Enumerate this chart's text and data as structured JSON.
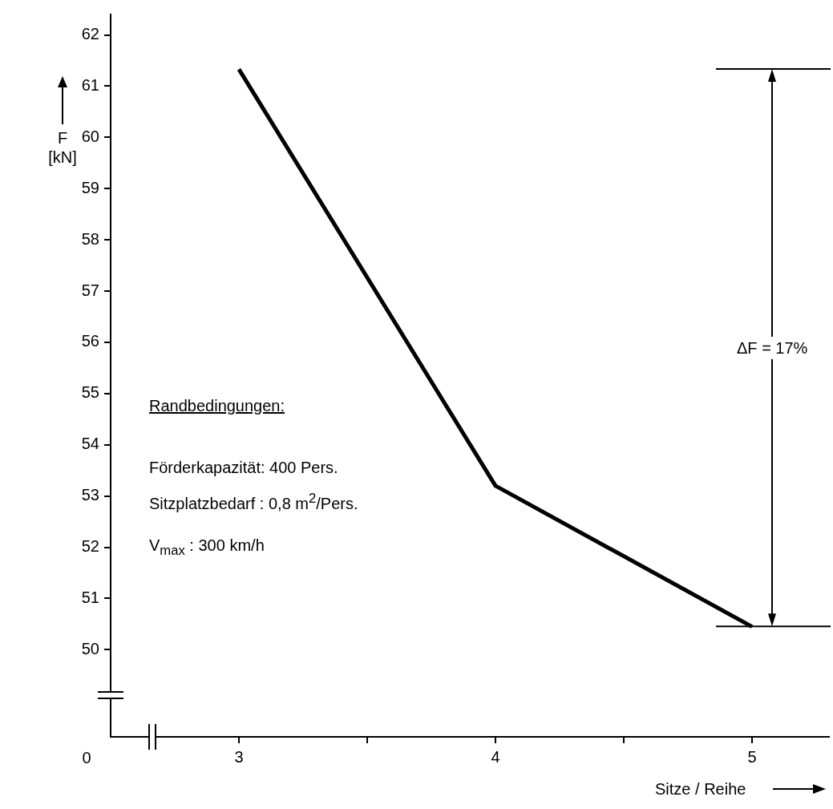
{
  "chart_data": {
    "type": "line",
    "xlabel": "Sitze / Reihe",
    "ylabel": "F [kN]",
    "x": [
      3,
      4,
      5
    ],
    "series": [
      {
        "color": "#000000",
        "values": [
          61.33,
          53.2,
          50.45
        ]
      }
    ],
    "xlim": [
      2.5,
      5.3
    ],
    "xticks": [
      3,
      {
        "value": 3.5,
        "label": null
      },
      4,
      {
        "value": 4.5,
        "label": null
      },
      5
    ],
    "ylim": [
      48.3,
      62.4
    ],
    "yticks": [
      50,
      51,
      52,
      53,
      54,
      55,
      56,
      57,
      58,
      59,
      60,
      61,
      62
    ],
    "grid": false,
    "legend": false,
    "marker": "none",
    "line_style": "solid",
    "annotations": [
      "ΔF = 17%",
      "Randbedingungen:",
      "Förderkapazität: 400 Pers.",
      "Sitzplatzbedarf : 0,8 m$^{2}$/Pers.",
      "V$_{max}$ : 300 km/h",
      "0"
    ]
  }
}
